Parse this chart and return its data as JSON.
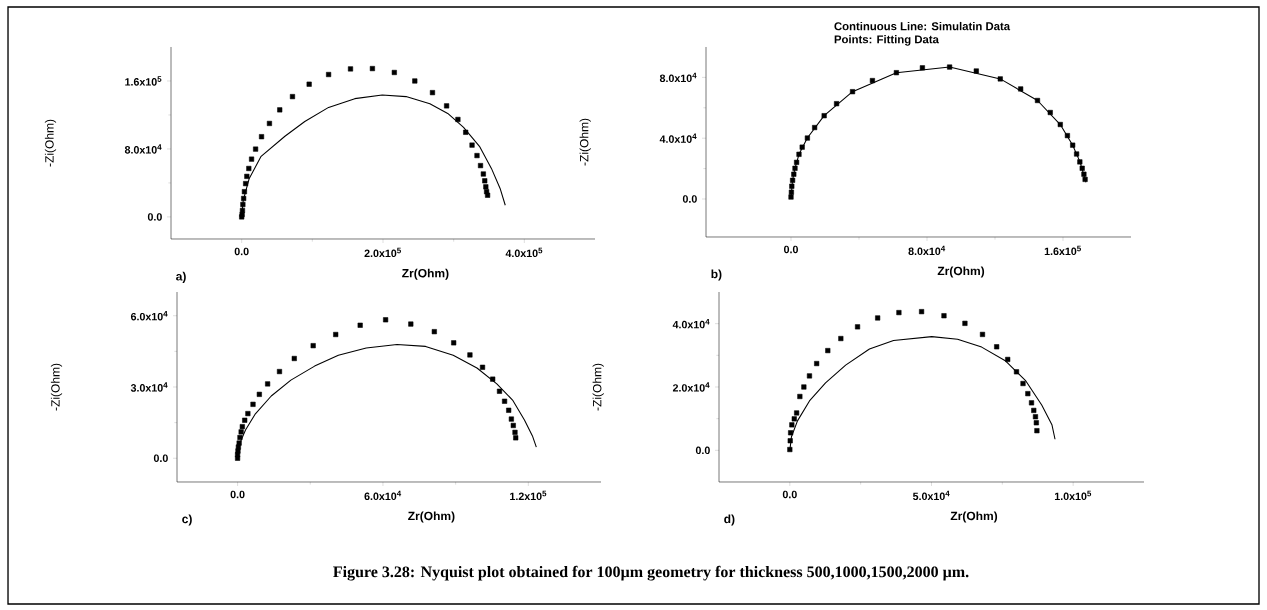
{
  "chart_data": [
    {
      "type": "line",
      "xlabel": "Zr(Ohm)",
      "ylabel": "-Zi(Ohm)",
      "annotations": [
        "a)"
      ],
      "xlim": [
        -100000,
        500000
      ],
      "ylim": [
        -26000,
        200000
      ],
      "xticks": [
        {
          "value": 0,
          "label": "0.0"
        },
        {
          "value": 200000,
          "label": "2.0x10$^{5}$"
        },
        {
          "value": 400000,
          "label": "4.0x10$^{5}$"
        }
      ],
      "yticks": [
        {
          "value": 0,
          "label": "0.0"
        },
        {
          "value": 80000,
          "label": "8.0x10$^{4}$"
        },
        {
          "value": 160000,
          "label": "1.6x10$^{5}$"
        }
      ],
      "series": [
        {
          "color": "#000000",
          "x": [
            0,
            2200,
            10700,
            27500,
            61200,
            89300,
            123000,
            160100,
            198900,
            232600,
            266300,
            291600,
            314000,
            336500,
            353400,
            365700,
            373000
          ],
          "values": [
            0,
            19400,
            45300,
            71300,
            94900,
            112300,
            128900,
            139200,
            143500,
            141600,
            133100,
            121800,
            105300,
            83100,
            57100,
            33500,
            13700
          ]
        },
        {
          "type": "scatter",
          "marker": "square",
          "color": "#000000",
          "x": [
            0,
            600,
            1100,
            1700,
            2800,
            3900,
            5600,
            7300,
            10100,
            14000,
            19700,
            28100,
            39300,
            53900,
            71900,
            95500,
            123000,
            154000,
            185000,
            216000,
            245000,
            270000,
            290000,
            306000,
            317000,
            326000,
            333000,
            338000,
            342000,
            344000,
            345500,
            346600,
            348000
          ],
          "values": [
            0,
            2800,
            7550,
            14600,
            21700,
            29700,
            39200,
            47700,
            57000,
            68000,
            79800,
            94400,
            110000,
            126000,
            141600,
            156200,
            167600,
            174200,
            174600,
            170000,
            160000,
            146300,
            130700,
            114700,
            99600,
            84500,
            72200,
            60400,
            50500,
            42500,
            35400,
            29700,
            25500
          ]
        }
      ]
    },
    {
      "type": "line",
      "xlabel": "Zr(Ohm)",
      "ylabel": "-Zi(Ohm)",
      "annotations": [
        "b)",
        "Continuous Line:  Simulatin Data",
        "Points: Fitting Data"
      ],
      "xlim": [
        -50000,
        200000
      ],
      "ylim": [
        -25000,
        100000
      ],
      "xticks": [
        {
          "value": 0,
          "label": "0.0"
        },
        {
          "value": 80000,
          "label": "8.0x10$^{4}$"
        },
        {
          "value": 160000,
          "label": "1.6x10$^{5}$"
        }
      ],
      "yticks": [
        {
          "value": 0,
          "label": "0.0"
        },
        {
          "value": 40000,
          "label": "4.0x10$^{4}$"
        },
        {
          "value": 80000,
          "label": "8.0x10$^{4}$"
        }
      ],
      "series": [
        {
          "color": "#000000",
          "x": [
            0,
            300,
            900,
            2300,
            4700,
            9600,
            19500,
            36200,
            62000,
            93300,
            123100,
            145000,
            158400,
            165700,
            170000,
            173000,
            173500
          ],
          "values": [
            0,
            4400,
            12300,
            20200,
            29400,
            40100,
            54800,
            70600,
            83100,
            86800,
            79000,
            64800,
            49000,
            35400,
            24400,
            12900,
            11000
          ]
        },
        {
          "type": "scatter",
          "marker": "square",
          "color": "#000000",
          "x": [
            0,
            235,
            470,
            940,
            1650,
            2350,
            3290,
            4700,
            6580,
            9640,
            13900,
            19500,
            26800,
            36200,
            47900,
            62000,
            77300,
            93300,
            109000,
            123100,
            135100,
            145000,
            152500,
            158400,
            162600,
            165700,
            168000,
            169900,
            171300,
            172300,
            173000
          ],
          "values": [
            1300,
            4460,
            8400,
            12300,
            16300,
            20200,
            24100,
            29400,
            34100,
            40100,
            47000,
            54800,
            62700,
            70600,
            77900,
            83100,
            86300,
            86800,
            84200,
            79000,
            72400,
            64800,
            56900,
            49000,
            41700,
            35400,
            29600,
            24400,
            20200,
            16300,
            12900
          ]
        }
      ]
    },
    {
      "type": "line",
      "xlabel": "Zr(Ohm)",
      "ylabel": "-Zi(Ohm)",
      "annotations": [
        "c)"
      ],
      "xlim": [
        -25000,
        150000
      ],
      "ylim": [
        -10000,
        70000
      ],
      "xticks": [
        {
          "value": 0,
          "label": "0.0"
        },
        {
          "value": 60000,
          "label": "6.0x10$^{4}$"
        },
        {
          "value": 120000,
          "label": "1.2x10$^{5}$"
        }
      ],
      "yticks": [
        {
          "value": 0,
          "label": "0.0"
        },
        {
          "value": 30000,
          "label": "3.0x10$^{4}$"
        },
        {
          "value": 60000,
          "label": "6.0x10$^{4}$"
        }
      ],
      "series": [
        {
          "color": "#000000",
          "x": [
            0,
            820,
            3270,
            7350,
            13900,
            22000,
            31800,
            41600,
            53100,
            65800,
            77600,
            89000,
            98800,
            107000,
            113500,
            118400,
            121700,
            123300
          ],
          "values": [
            0,
            6050,
            11900,
            18700,
            26200,
            32900,
            38800,
            43400,
            46400,
            47900,
            47100,
            43400,
            38000,
            31300,
            24500,
            16100,
            9400,
            4700
          ]
        },
        {
          "type": "scatter",
          "marker": "square",
          "color": "#000000",
          "x": [
            0,
            0,
            160,
            330,
            650,
            980,
            1470,
            1960,
            2940,
            4250,
            6370,
            8980,
            12400,
            17300,
            23400,
            31200,
            40500,
            50600,
            61100,
            71500,
            81200,
            89200,
            95900,
            101100,
            105300,
            108100,
            110200,
            111900,
            113000,
            113800,
            114500,
            114800
          ],
          "values": [
            0,
            1510,
            3030,
            4710,
            6390,
            8740,
            11100,
            13300,
            16000,
            18800,
            22700,
            26900,
            31300,
            36500,
            42000,
            47400,
            52100,
            56000,
            58300,
            56500,
            53300,
            48600,
            43500,
            38300,
            33300,
            28200,
            24000,
            20200,
            16500,
            13800,
            10900,
            8600
          ]
        }
      ]
    },
    {
      "type": "line",
      "xlabel": "Zr(Ohm)",
      "ylabel": "-Zi(Ohm)",
      "annotations": [
        "d)",
        "Figure 3.28:  Nyquist plot obtained for 100µm geometry for thickness 500,1000,1500,2000 µm."
      ],
      "xlim": [
        -25000,
        125000
      ],
      "ylim": [
        -10000,
        50000
      ],
      "xticks": [
        {
          "value": 0,
          "label": "0.0"
        },
        {
          "value": 50000,
          "label": "5.0x10$^{4}$"
        },
        {
          "value": 100000,
          "label": "1.0x10$^{5}$"
        }
      ],
      "yticks": [
        {
          "value": 0,
          "label": "0.0"
        },
        {
          "value": 20000,
          "label": "2.0x10$^{4}$"
        },
        {
          "value": 40000,
          "label": "4.0x10$^{4}$"
        }
      ],
      "series": [
        {
          "color": "#000000",
          "x": [
            0,
            570,
            2700,
            6930,
            12600,
            19700,
            28100,
            36600,
            50100,
            59200,
            67700,
            76200,
            83300,
            88900,
            92500,
            93600
          ],
          "values": [
            0,
            4300,
            9300,
            15600,
            21300,
            26900,
            32000,
            34700,
            35900,
            35100,
            32600,
            28200,
            21900,
            14300,
            8100,
            3500
          ]
        },
        {
          "type": "scatter",
          "marker": "square",
          "color": "#000000",
          "x": [
            0,
            140,
            280,
            710,
            1560,
            2400,
            3540,
            4950,
            6930,
            9470,
            13400,
            18000,
            23900,
            31000,
            38500,
            46500,
            54400,
            61800,
            68000,
            73000,
            76900,
            80000,
            82300,
            84000,
            85300,
            86100,
            86700,
            87000,
            87200
          ],
          "values": [
            250,
            3020,
            5540,
            8050,
            9940,
            11800,
            17000,
            20000,
            23500,
            27400,
            31500,
            35300,
            39000,
            41800,
            43500,
            43800,
            42500,
            40100,
            36600,
            32700,
            28700,
            24800,
            21100,
            17900,
            15000,
            12600,
            10600,
            8700,
            6200
          ]
        }
      ]
    }
  ]
}
